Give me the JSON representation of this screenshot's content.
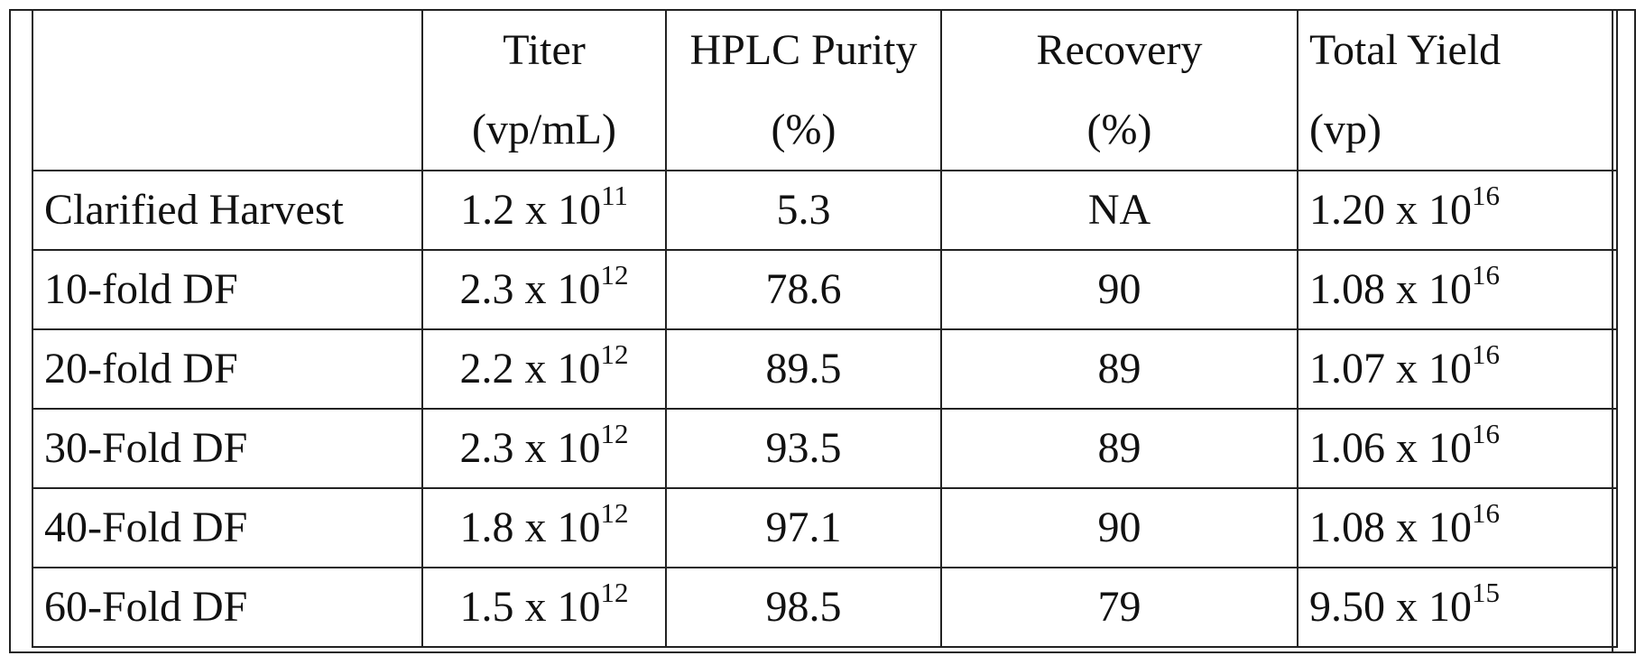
{
  "table": {
    "headers": [
      {
        "line1": "",
        "line2": ""
      },
      {
        "line1": "Titer",
        "line2": "(vp/mL)"
      },
      {
        "line1": "HPLC Purity",
        "line2": "(%)"
      },
      {
        "line1": "Recovery",
        "line2": "(%)"
      },
      {
        "line1": "Total Yield",
        "line2": "(vp)"
      }
    ],
    "rows": [
      {
        "label": "Clarified Harvest",
        "titer_base": "1.2 x 10",
        "titer_exp": "11",
        "purity": "5.3",
        "recovery": "NA",
        "yield_base": "1.20 x 10",
        "yield_exp": "16"
      },
      {
        "label": "10-fold DF",
        "titer_base": "2.3 x 10",
        "titer_exp": "12",
        "purity": "78.6",
        "recovery": "90",
        "yield_base": "1.08 x 10",
        "yield_exp": "16"
      },
      {
        "label": "20-fold DF",
        "titer_base": "2.2 x 10",
        "titer_exp": "12",
        "purity": "89.5",
        "recovery": "89",
        "yield_base": "1.07 x 10",
        "yield_exp": "16"
      },
      {
        "label": "30-Fold DF",
        "titer_base": "2.3 x 10",
        "titer_exp": "12",
        "purity": "93.5",
        "recovery": "89",
        "yield_base": "1.06 x 10",
        "yield_exp": "16"
      },
      {
        "label": "40-Fold DF",
        "titer_base": "1.8 x 10",
        "titer_exp": "12",
        "purity": "97.1",
        "recovery": "90",
        "yield_base": "1.08 x 10",
        "yield_exp": "16"
      },
      {
        "label": "60-Fold DF",
        "titer_base": "1.5 x 10",
        "titer_exp": "12",
        "purity": "98.5",
        "recovery": "79",
        "yield_base": "9.50 x 10",
        "yield_exp": "15"
      }
    ]
  }
}
